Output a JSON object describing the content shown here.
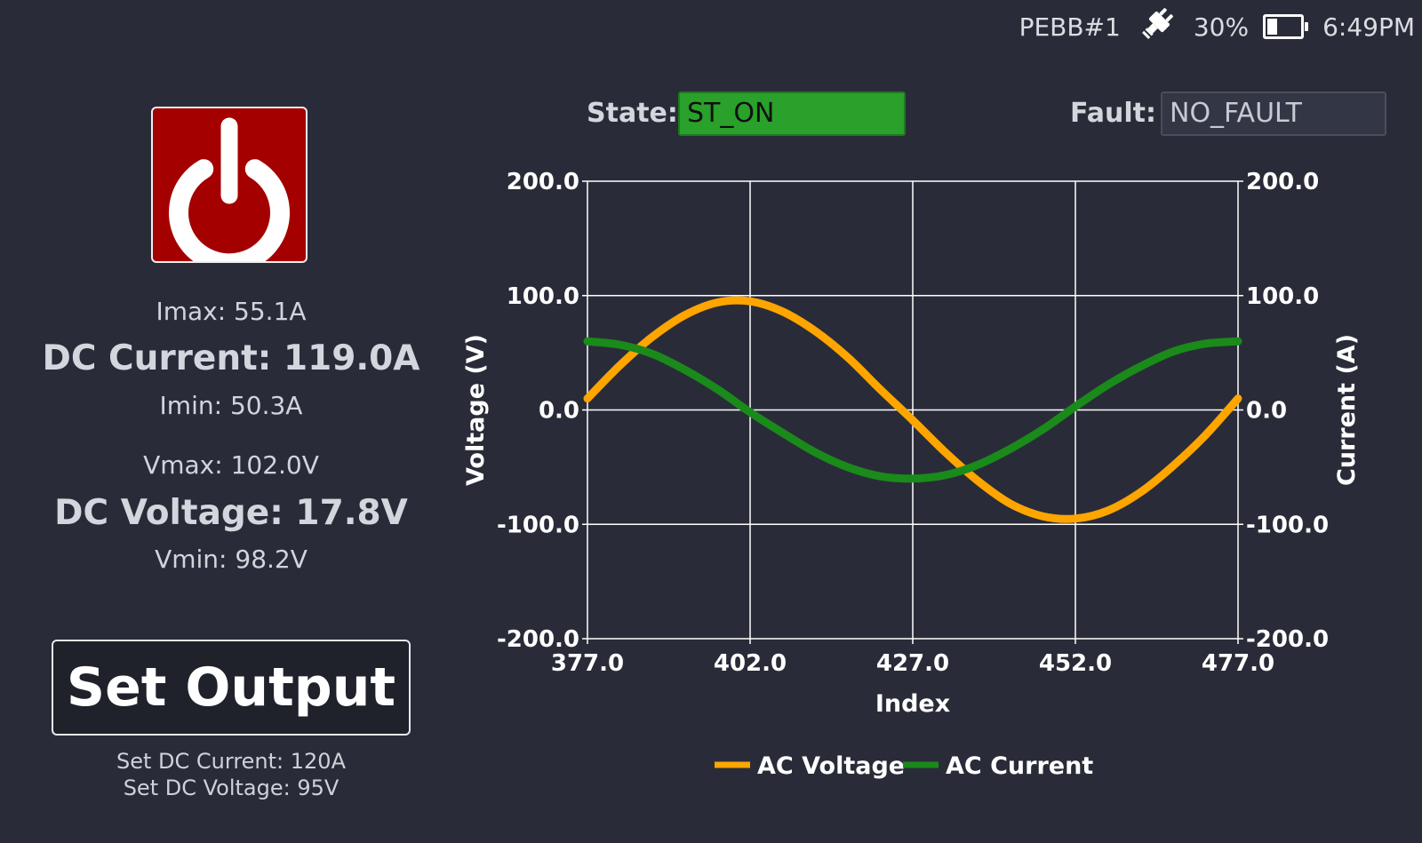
{
  "status_bar": {
    "device": "PEBB#1",
    "connection_icon": "plug-icon",
    "battery_percent": "30%",
    "battery_level": 0.3,
    "time": "6:49PM"
  },
  "power_button": {
    "icon": "power-icon",
    "color": "#a40000"
  },
  "readings": {
    "imax": "Imax: 55.1A",
    "dc_current": "DC Current: 119.0A",
    "imin": "Imin: 50.3A",
    "vmax": "Vmax: 102.0V",
    "dc_voltage": "DC Voltage: 17.8V",
    "vmin": "Vmin: 98.2V"
  },
  "set_output": {
    "label": "Set Output",
    "set_current": "Set DC Current: 120A",
    "set_voltage": "Set DC Voltage: 95V"
  },
  "state": {
    "label": "State:",
    "value": "ST_ON",
    "color": "#29a12a"
  },
  "fault": {
    "label": "Fault:",
    "value": "NO_FAULT"
  },
  "chart_data": {
    "type": "line",
    "xlabel": "Index",
    "ylabel_left": "Voltage (V)",
    "ylabel_right": "Current (A)",
    "xlim": [
      377.0,
      477.0
    ],
    "ylim_left": [
      -200.0,
      200.0
    ],
    "ylim_right": [
      -200.0,
      200.0
    ],
    "x_ticks": [
      "377.0",
      "402.0",
      "427.0",
      "452.0",
      "477.0"
    ],
    "y_ticks": [
      "200.0",
      "100.0",
      "0.0",
      "-100.0",
      "-200.0"
    ],
    "grid": true,
    "legend_position": "bottom",
    "series": [
      {
        "name": "AC Voltage",
        "color": "#ffa500",
        "x": [
          377,
          382,
          387,
          392,
          397,
          402,
          407,
          412,
          417,
          422,
          427,
          432,
          437,
          442,
          447,
          452,
          457,
          462,
          467,
          472,
          477
        ],
        "values": [
          10,
          39,
          64,
          83,
          94,
          95,
          86,
          69,
          46,
          18,
          -9,
          -37,
          -62,
          -82,
          -93,
          -95,
          -88,
          -72,
          -49,
          -22,
          10
        ]
      },
      {
        "name": "AC Current",
        "color": "#1a8a1a",
        "x": [
          377,
          382,
          387,
          392,
          397,
          402,
          407,
          412,
          417,
          422,
          427,
          432,
          437,
          442,
          447,
          452,
          457,
          462,
          467,
          472,
          477
        ],
        "values": [
          60,
          57,
          49,
          35,
          18,
          -2,
          -20,
          -37,
          -50,
          -58,
          -60,
          -57,
          -48,
          -34,
          -17,
          3,
          22,
          38,
          51,
          58,
          60
        ]
      }
    ]
  }
}
